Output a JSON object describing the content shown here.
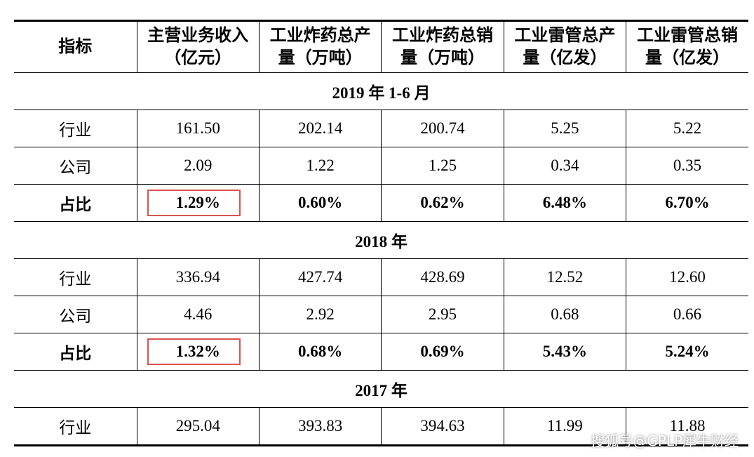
{
  "headers": [
    [
      "指标"
    ],
    [
      "主营业务收入",
      "（亿元）"
    ],
    [
      "工业炸药总产",
      "量（万吨）"
    ],
    [
      "工业炸药总销",
      "量（万吨）"
    ],
    [
      "工业雷管总产",
      "量（亿发）"
    ],
    [
      "工业雷管总销",
      "量（亿发）"
    ]
  ],
  "sections": [
    {
      "title": "2019 年 1-6 月",
      "rows": [
        {
          "label": "行业",
          "values": [
            "161.50",
            "202.14",
            "200.74",
            "5.25",
            "5.22"
          ]
        },
        {
          "label": "公司",
          "values": [
            "2.09",
            "1.22",
            "1.25",
            "0.34",
            "0.35"
          ]
        },
        {
          "label": "占比",
          "values": [
            "1.29%",
            "0.60%",
            "0.62%",
            "6.48%",
            "6.70%"
          ]
        }
      ]
    },
    {
      "title": "2018 年",
      "rows": [
        {
          "label": "行业",
          "values": [
            "336.94",
            "427.74",
            "428.69",
            "12.52",
            "12.60"
          ]
        },
        {
          "label": "公司",
          "values": [
            "4.46",
            "2.92",
            "2.95",
            "0.68",
            "0.66"
          ]
        },
        {
          "label": "占比",
          "values": [
            "1.32%",
            "0.68%",
            "0.69%",
            "5.43%",
            "5.24%"
          ]
        }
      ]
    },
    {
      "title": "2017 年",
      "rows": [
        {
          "label": "行业",
          "values": [
            "295.04",
            "393.83",
            "394.63",
            "11.99",
            "11.88"
          ]
        }
      ]
    }
  ],
  "watermark": "搜狐号@GPLP犀牛财经",
  "highlight_color": "#d9534f"
}
